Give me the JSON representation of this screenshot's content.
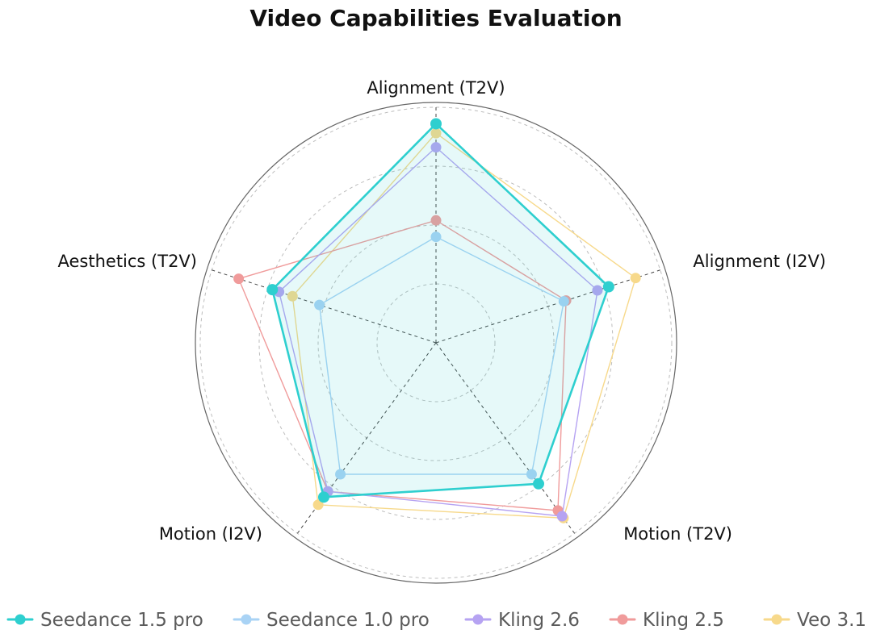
{
  "chart_data": {
    "type": "radar",
    "title": "Video Capabilities Evaluation",
    "axes": [
      "Alignment (T2V)",
      "Alignment (I2V)",
      "Motion (T2V)",
      "Motion (I2V)",
      "Aesthetics (T2V)"
    ],
    "range": [
      0,
      1
    ],
    "grid": true,
    "legend_position": "bottom",
    "series": [
      {
        "name": "Seedance 1.5 pro",
        "values": [
          0.93,
          0.77,
          0.74,
          0.81,
          0.73
        ],
        "color": "#2ecfcf",
        "filled": true
      },
      {
        "name": "Seedance 1.0 pro",
        "values": [
          0.45,
          0.57,
          0.69,
          0.69,
          0.52
        ],
        "color": "#a9d3f5",
        "filled": false
      },
      {
        "name": "Kling 2.6",
        "values": [
          0.83,
          0.72,
          0.91,
          0.78,
          0.7
        ],
        "color": "#b6a3f2",
        "filled": false
      },
      {
        "name": "Kling 2.5",
        "values": [
          0.52,
          0.58,
          0.88,
          0.78,
          0.88
        ],
        "color": "#f09b9b",
        "filled": false
      },
      {
        "name": "Veo 3.1",
        "values": [
          0.89,
          0.89,
          0.92,
          0.85,
          0.64
        ],
        "color": "#f7d98b",
        "filled": false
      }
    ]
  }
}
